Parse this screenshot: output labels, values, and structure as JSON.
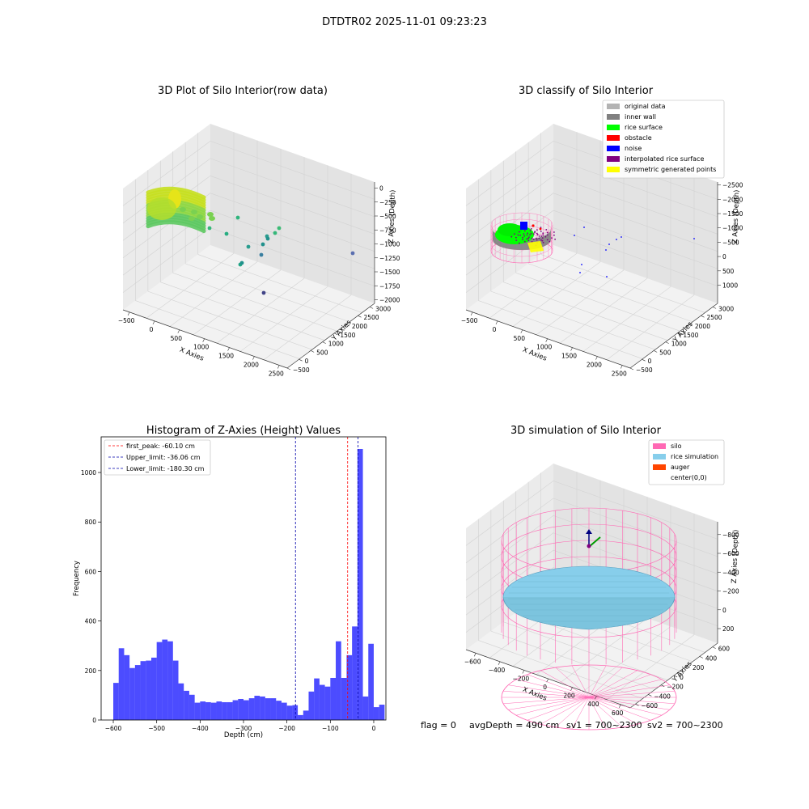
{
  "figure": {
    "suptitle": "DTDTR02 2025-11-01 09:23:23",
    "footer": {
      "flag": "flag = 0",
      "avg_depth": "avgDepth = 490 cm",
      "sv1": "sv1 = 700~2300",
      "sv2": "sv2 = 700~2300"
    }
  },
  "chart_data": [
    {
      "type": "scatter3d",
      "title": "3D Plot of Silo Interior(row data)",
      "xlabel": "X Axies",
      "ylabel": "Y Axies",
      "zlabel": "Z Axies (Depth)",
      "x_ticks": [
        "−500",
        "0",
        "500",
        "1000",
        "1500",
        "2000",
        "2500"
      ],
      "y_ticks": [
        "−500",
        "0",
        "500",
        "1000",
        "1500",
        "2000",
        "2500",
        "3000"
      ],
      "z_ticks": [
        "0",
        "−250",
        "−500",
        "−750",
        "−1000",
        "−1250",
        "−1500",
        "−1750",
        "−2000"
      ],
      "colormap": "viridis"
    },
    {
      "type": "scatter3d",
      "title": "3D classify of Silo Interior",
      "xlabel": "X Axies",
      "ylabel": "Y Axies",
      "zlabel": "Z Axies (Depth)",
      "x_ticks": [
        "−500",
        "0",
        "500",
        "1000",
        "1500",
        "2000",
        "2500"
      ],
      "y_ticks": [
        "−500",
        "0",
        "500",
        "1000",
        "1500",
        "2000",
        "2500",
        "3000"
      ],
      "z_ticks": [
        "1000",
        "500",
        "0",
        "−500",
        "−1000",
        "−1500",
        "−2000",
        "−2500"
      ],
      "legend": [
        {
          "label": "original data",
          "color": "#b3b3b3"
        },
        {
          "label": "inner wall",
          "color": "#808080"
        },
        {
          "label": "rice surface",
          "color": "#00ff00"
        },
        {
          "label": "obstacle",
          "color": "#ff0000"
        },
        {
          "label": "noise",
          "color": "#0000ff"
        },
        {
          "label": "interpolated rice surface",
          "color": "#800080"
        },
        {
          "label": "symmetric generated points",
          "color": "#ffff00"
        }
      ]
    },
    {
      "type": "bar",
      "title": "Histogram of Z-Axies (Height) Values",
      "xlabel": "Depth (cm)",
      "ylabel": "Frequency",
      "xlim": [
        -628,
        28
      ],
      "ylim": [
        0,
        1144
      ],
      "x_ticks": [
        -600,
        -500,
        -400,
        -300,
        -200,
        -100,
        0
      ],
      "y_ticks": [
        0,
        200,
        400,
        600,
        800,
        1000
      ],
      "bin_start": -600,
      "bin_width": 12.5,
      "values": [
        150,
        290,
        262,
        210,
        222,
        238,
        240,
        252,
        315,
        325,
        318,
        240,
        148,
        118,
        102,
        70,
        75,
        72,
        70,
        75,
        72,
        72,
        80,
        85,
        80,
        88,
        98,
        95,
        88,
        88,
        78,
        70,
        58,
        60,
        20,
        38,
        115,
        168,
        142,
        135,
        170,
        318,
        170,
        262,
        378,
        1095,
        95,
        308,
        52,
        62
      ],
      "bar_color": "#0000ff",
      "vlines": [
        {
          "x": -60.1,
          "label": "first_peak: -60.10 cm",
          "color": "#ff0000"
        },
        {
          "x": -36.06,
          "label": "Upper_limit: -36.06 cm",
          "color": "#0000aa"
        },
        {
          "x": -180.3,
          "label": "Lower_limit: -180.30 cm",
          "color": "#0000aa"
        }
      ]
    },
    {
      "type": "surface3d",
      "title": "3D simulation of Silo Interior",
      "xlabel": "X Axies",
      "ylabel": "Y Axies",
      "zlabel": "Z Axies (Depth)",
      "x_ticks": [
        "−600",
        "−400",
        "−200",
        "0",
        "200",
        "400",
        "600"
      ],
      "y_ticks": [
        "−600",
        "−400",
        "−200",
        "0",
        "200",
        "400",
        "600"
      ],
      "z_ticks": [
        "200",
        "0",
        "−200",
        "−400",
        "−600",
        "−800"
      ],
      "legend": [
        {
          "label": "silo",
          "color": "#ff69b4"
        },
        {
          "label": "rice simulation",
          "color": "#87ceeb"
        },
        {
          "label": "auger",
          "color": "#ff4500"
        },
        {
          "label": "center(0,0)",
          "color": "#ffffff"
        }
      ]
    }
  ]
}
